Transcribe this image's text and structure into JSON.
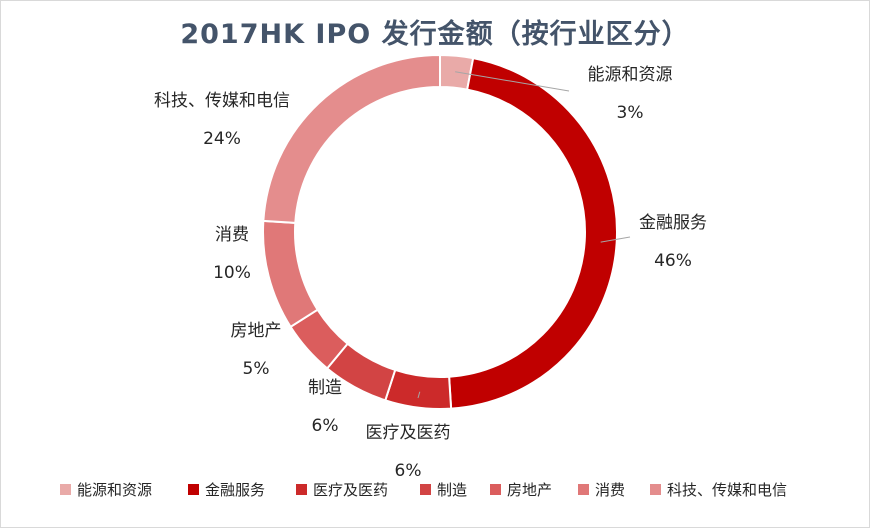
{
  "chart_data": {
    "type": "pie",
    "title": "2017HK IPO 发行金额（按行业区分）",
    "labels": [
      "能源和资源",
      "金融服务",
      "医疗及医药",
      "制造",
      "房地产",
      "消费",
      "科技、传媒和电信"
    ],
    "values": [
      3,
      46,
      6,
      6,
      5,
      10,
      24
    ],
    "value_labels": [
      "3%",
      "46%",
      "6%",
      "6%",
      "5%",
      "10%",
      "24%"
    ],
    "colors": [
      "#e9aaa8",
      "#c00000",
      "#cc2a2a",
      "#d24444",
      "#db5d5d",
      "#e07878",
      "#e48d8d"
    ],
    "legend_position": "bottom",
    "donut": true
  }
}
